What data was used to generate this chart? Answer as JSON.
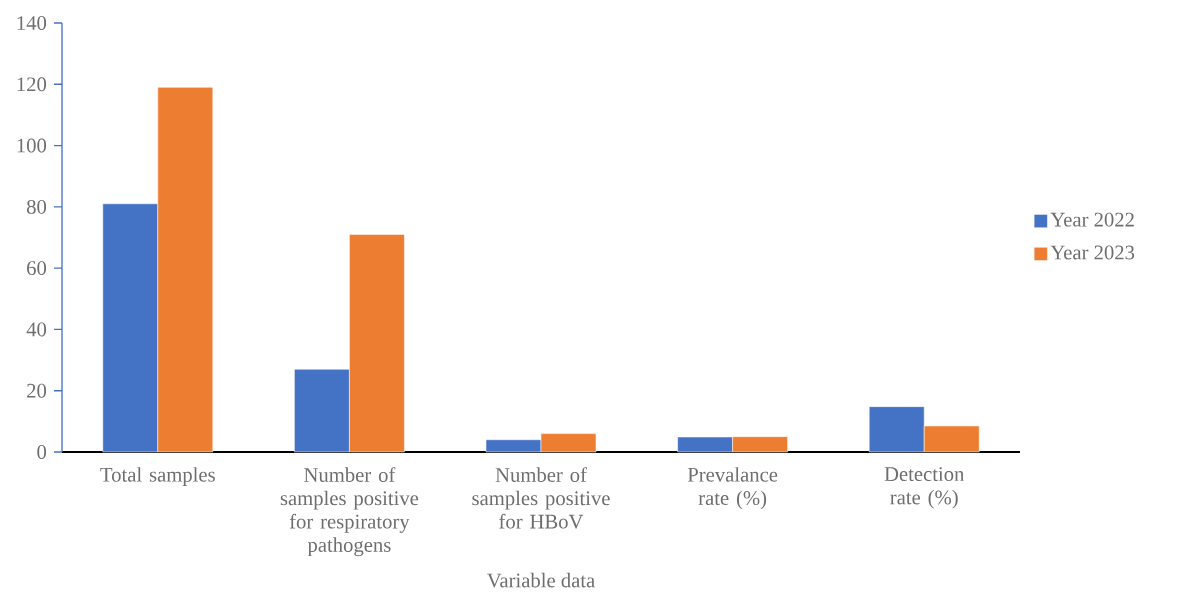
{
  "chart_data": {
    "type": "bar",
    "xlabel": "Variable data",
    "categories": [
      "Total samples",
      "Number of samples positive for respiratory pathogens",
      "Number of samples positive for HBoV",
      "Prevalance rate (%)",
      "Detection rate (%)"
    ],
    "series": [
      {
        "name": "Year 2022",
        "color": "#4472c4",
        "values": [
          81,
          27,
          4,
          4.9,
          14.8
        ]
      },
      {
        "name": "Year 2023",
        "color": "#ed7d31",
        "values": [
          119,
          71,
          6,
          5.0,
          8.5
        ]
      }
    ],
    "ylim": [
      0,
      140
    ],
    "yticks": [
      0,
      20,
      40,
      60,
      80,
      100,
      120,
      140
    ],
    "grid": false,
    "legend": "right"
  }
}
